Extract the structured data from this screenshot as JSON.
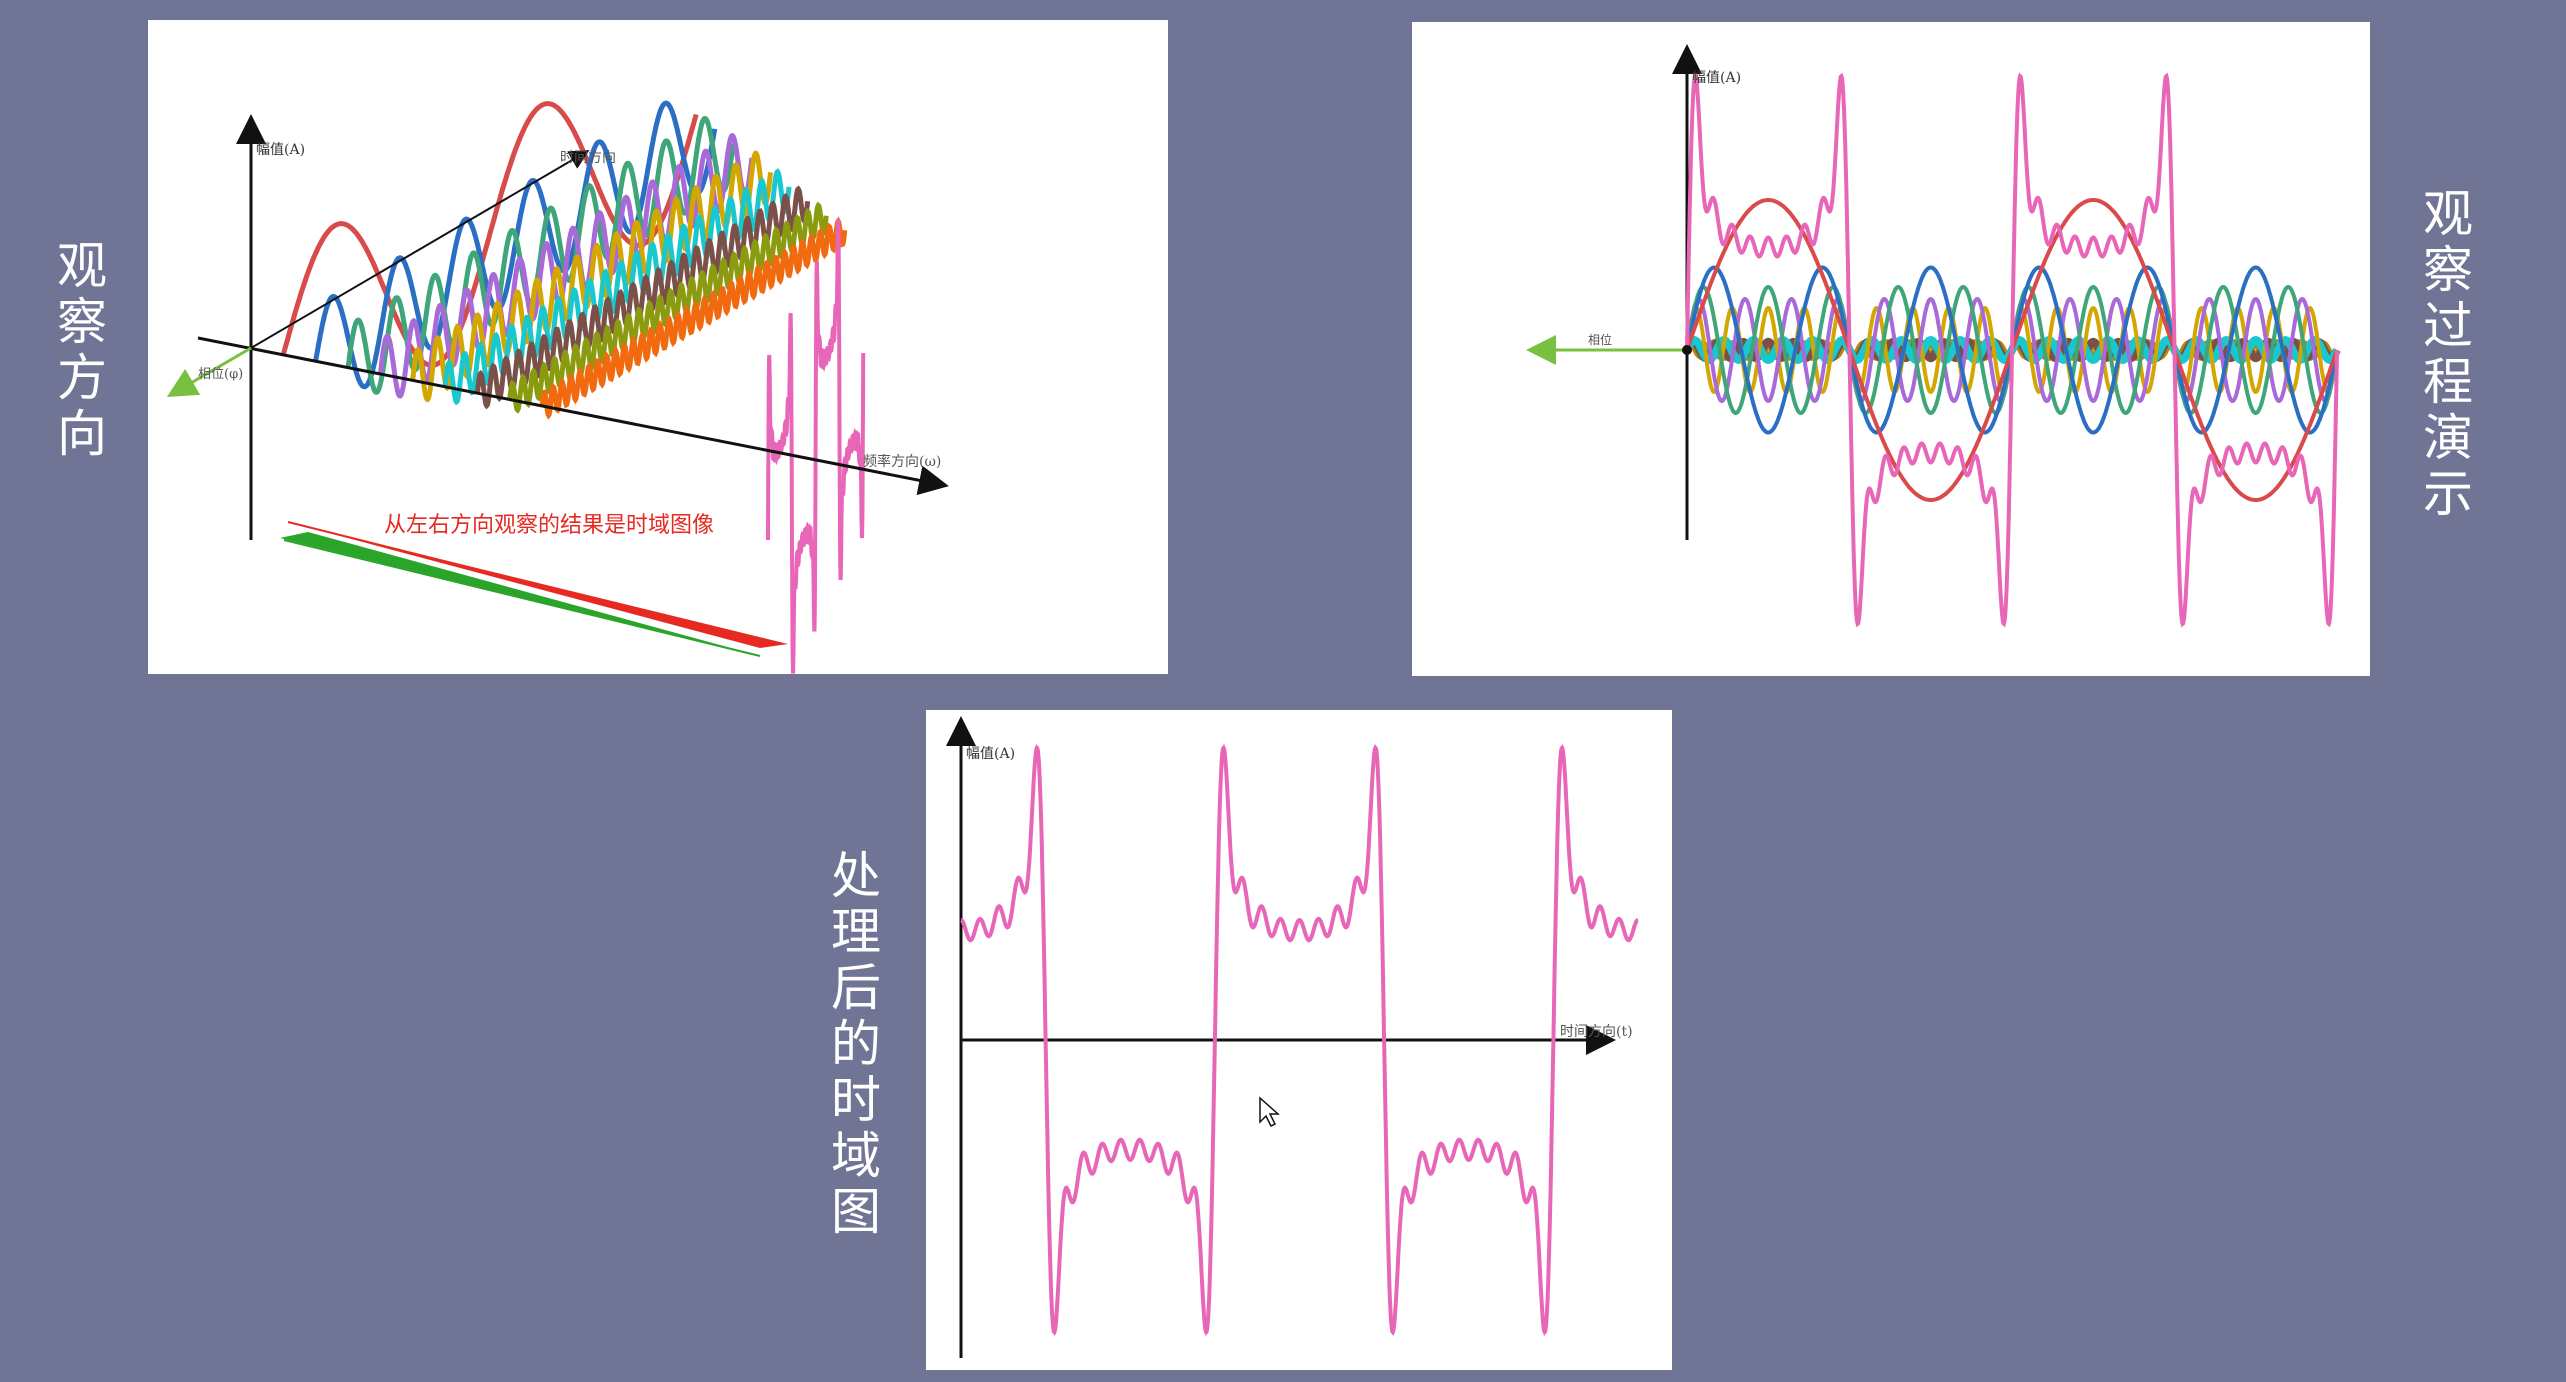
{
  "labels": {
    "left": "观察方向",
    "right": "观察过程演示",
    "middle": "处理后的时域图"
  },
  "panel_3d": {
    "amp_axis": "幅值(A)",
    "time_axis": "时间方向",
    "freq_axis": "频率方向(ω)",
    "phase_axis": "相位(φ)",
    "annotation": "从左右方向观察的结果是时域图像"
  },
  "panel_front": {
    "amp_axis": "幅值(A)",
    "phase_axis": "相位"
  },
  "panel_time": {
    "amp_axis": "幅值(A)",
    "time_axis": "时间方向(t)"
  },
  "colors": {
    "background": "#717595",
    "composite": "#e866b8",
    "h1": "#d94b4b",
    "h2": "#2a6fc4",
    "h3": "#3fa67a",
    "h4": "#a86ad8",
    "h5": "#d4a600",
    "h6": "#19c7cf",
    "h7": "#7a5048",
    "h8": "#8a9b10",
    "h9": "#f26a10",
    "arrow_red": "#e62a22",
    "arrow_green": "#2aa52a",
    "phase_arrow": "#7ac040"
  },
  "icons": {
    "cursor": "mouse-pointer-icon"
  }
}
